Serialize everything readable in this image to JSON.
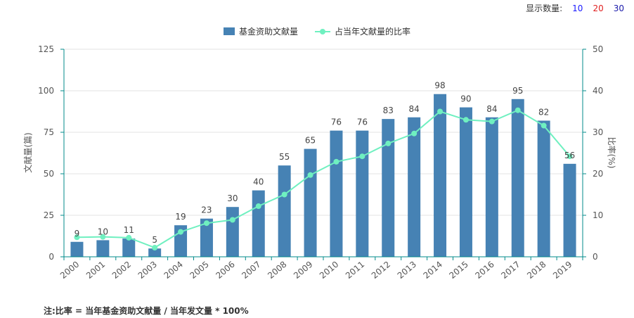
{
  "display_count": {
    "label": "显示数量:",
    "options": [
      {
        "value": "10",
        "color": "#1a1aff"
      },
      {
        "value": "20",
        "color": "#e02020"
      },
      {
        "value": "30",
        "color": "#1a1aaa"
      }
    ]
  },
  "note": "注:比率 = 当年基金资助文献量 / 当年发文量 * 100%",
  "colors": {
    "bar": "#4682b4",
    "line": "#6ff0c0",
    "axis": "#008b8b",
    "grid": "#e3e3e3"
  },
  "chart_data": {
    "type": "bar",
    "categories": [
      "2000",
      "2001",
      "2002",
      "2003",
      "2004",
      "2005",
      "2006",
      "2007",
      "2008",
      "2009",
      "2010",
      "2011",
      "2012",
      "2013",
      "2014",
      "2015",
      "2016",
      "2017",
      "2018",
      "2019"
    ],
    "series": [
      {
        "name": "基金资助文献量",
        "type": "bar",
        "axis": "left",
        "values": [
          9,
          10,
          11,
          5,
          19,
          23,
          30,
          40,
          55,
          65,
          76,
          76,
          83,
          84,
          98,
          90,
          84,
          95,
          82,
          56
        ]
      },
      {
        "name": "占当年文献量的比率",
        "type": "line",
        "axis": "right",
        "values": [
          4.7,
          4.8,
          4.6,
          2.2,
          6.0,
          8.1,
          8.9,
          12.2,
          15.0,
          19.7,
          22.9,
          24.2,
          27.3,
          29.7,
          35.0,
          33.0,
          32.6,
          35.3,
          31.6,
          24.2
        ]
      }
    ],
    "ylabel": "文献量(篇)",
    "ylabel_right": "比率(%)",
    "ylim": [
      0,
      125
    ],
    "yticks": [
      0,
      25,
      50,
      75,
      100,
      125
    ],
    "ylim_right": [
      0,
      50
    ],
    "yticks_right": [
      0,
      10,
      20,
      30,
      40,
      50
    ],
    "grid": true,
    "legend_position": "top-center"
  }
}
